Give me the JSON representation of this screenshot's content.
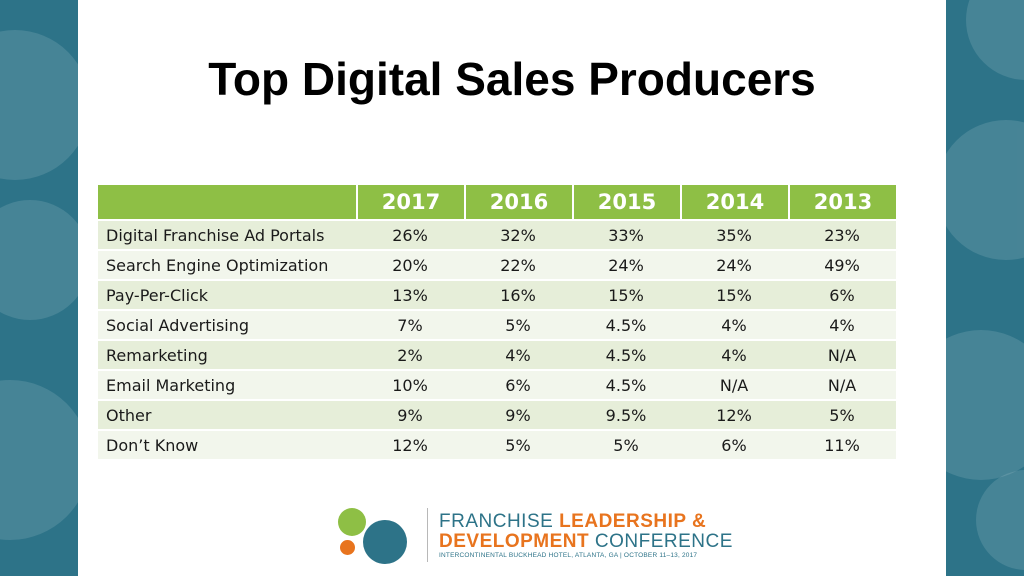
{
  "slide": {
    "title": "Top Digital Sales Producers"
  },
  "table": {
    "columns": [
      "2017",
      "2016",
      "2015",
      "2014",
      "2013"
    ],
    "rows": [
      {
        "label": "Digital Franchise Ad Portals",
        "values": [
          "26%",
          "32%",
          "33%",
          "35%",
          "23%"
        ]
      },
      {
        "label": "Search Engine Optimization",
        "values": [
          "20%",
          "22%",
          "24%",
          "24%",
          "49%"
        ]
      },
      {
        "label": "Pay-Per-Click",
        "values": [
          "13%",
          "16%",
          "15%",
          "15%",
          "6%"
        ]
      },
      {
        "label": "Social Advertising",
        "values": [
          "7%",
          "5%",
          "4.5%",
          "4%",
          "4%"
        ]
      },
      {
        "label": "Remarketing",
        "values": [
          "2%",
          "4%",
          "4.5%",
          "4%",
          "N/A"
        ]
      },
      {
        "label": "Email Marketing",
        "values": [
          "10%",
          "6%",
          "4.5%",
          "N/A",
          "N/A"
        ]
      },
      {
        "label": "Other",
        "values": [
          "9%",
          "9%",
          "9.5%",
          "12%",
          "5%"
        ]
      },
      {
        "label": "Don’t Know",
        "values": [
          "12%",
          "5%",
          "5%",
          "6%",
          "11%"
        ]
      }
    ]
  },
  "logo": {
    "line1_a": "FRANCHISE ",
    "line1_b": "LEADERSHIP",
    "line1_c": " &",
    "line2_a": "DEVELOPMENT",
    "line2_b": " CONFERENCE",
    "line3": "INTERCONTINENTAL BUCKHEAD HOTEL, ATLANTA, GA | OCTOBER 11–13, 2017"
  },
  "colors": {
    "side_panel": "#2d7388",
    "header_green": "#8ebf45",
    "row_light": "#f2f6ec",
    "row_dark": "#e6eed9",
    "logo_green": "#8ebf45",
    "logo_orange": "#e8741e",
    "logo_teal": "#2d7388"
  }
}
